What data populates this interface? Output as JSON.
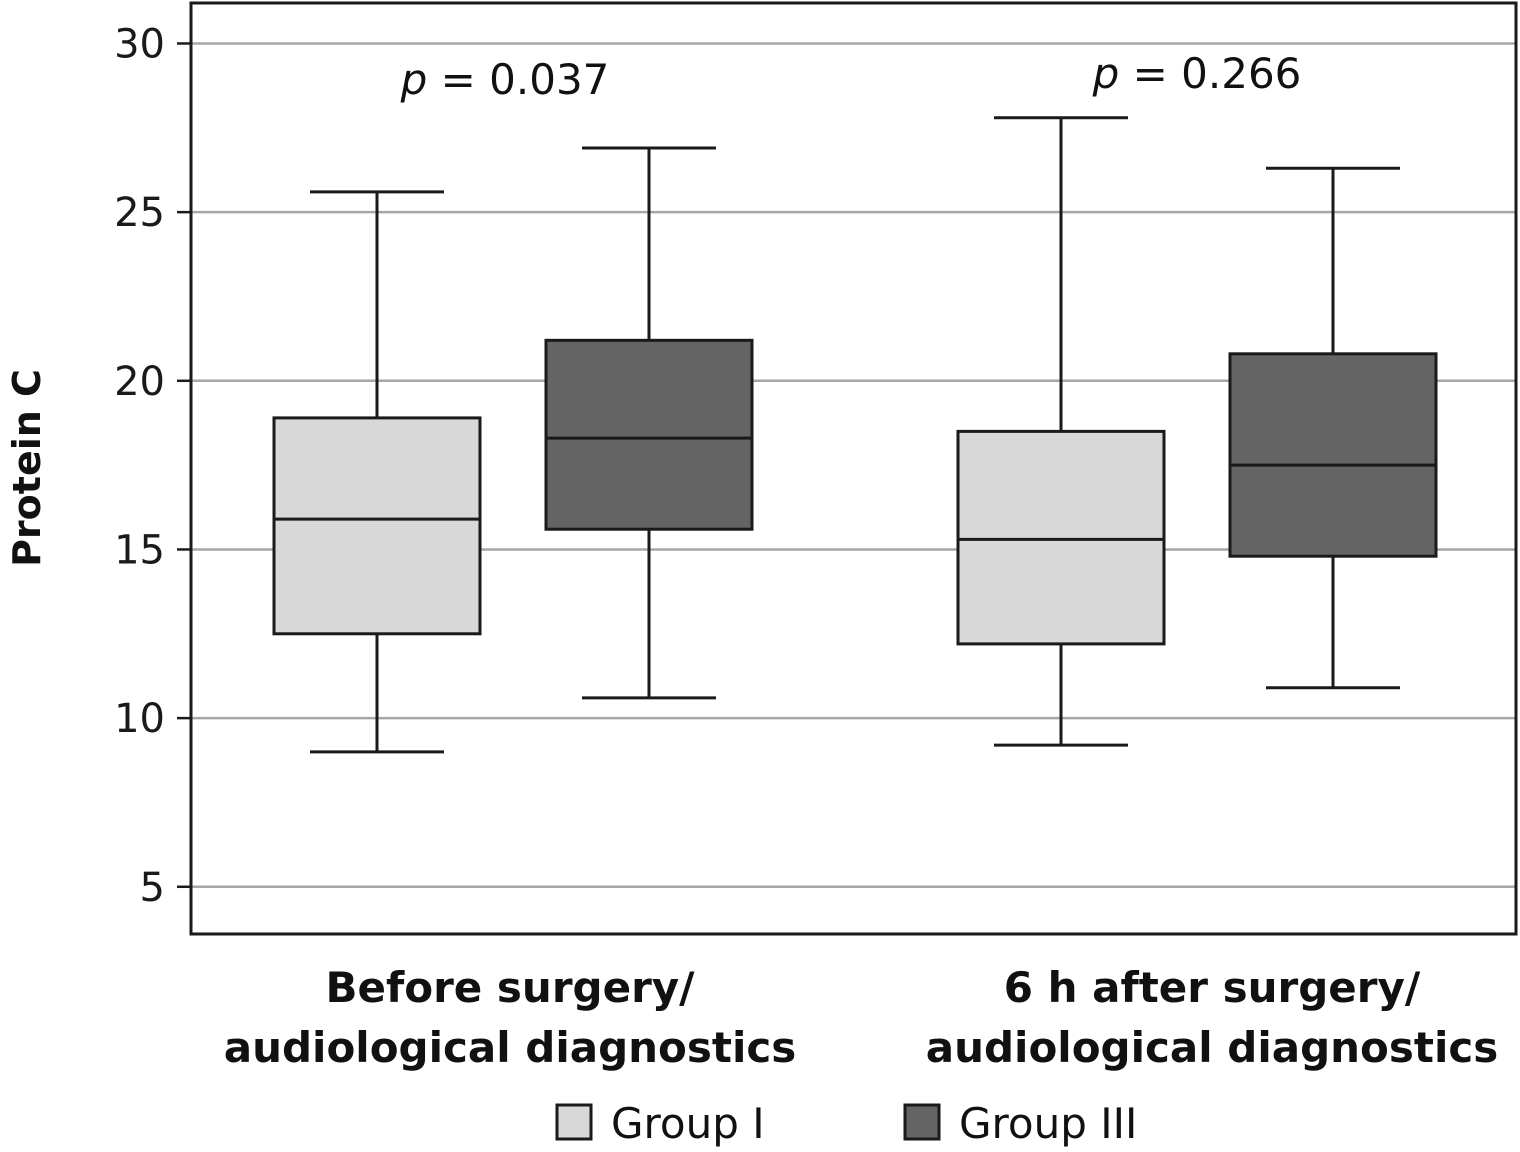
{
  "chart_data": {
    "type": "box",
    "ylabel": "Protein C",
    "ylim": [
      3.6,
      31.2
    ],
    "yticks": [
      5,
      10,
      15,
      20,
      25,
      30
    ],
    "grid": true,
    "categories": [
      [
        "Before surgery/",
        "audiological diagnostics"
      ],
      [
        "6 h after surgery/",
        "audiological diagnostics"
      ]
    ],
    "annotations": [
      {
        "category": 0,
        "p_symbol": "p",
        "text": " = 0.037"
      },
      {
        "category": 1,
        "p_symbol": "p",
        "text": " = 0.266"
      }
    ],
    "series": [
      {
        "name": "Group I",
        "color": "#d8d8d8",
        "boxes": [
          {
            "min": 9.0,
            "q1": 12.5,
            "median": 15.9,
            "q3": 18.9,
            "max": 25.6
          },
          {
            "min": 9.2,
            "q1": 12.2,
            "median": 15.3,
            "q3": 18.5,
            "max": 27.8
          }
        ]
      },
      {
        "name": "Group III",
        "color": "#646464",
        "boxes": [
          {
            "min": 10.6,
            "q1": 15.6,
            "median": 18.3,
            "q3": 21.2,
            "max": 26.9
          },
          {
            "min": 10.9,
            "q1": 14.8,
            "median": 17.5,
            "q3": 20.8,
            "max": 26.3
          }
        ]
      }
    ],
    "legend_position": "bottom"
  }
}
